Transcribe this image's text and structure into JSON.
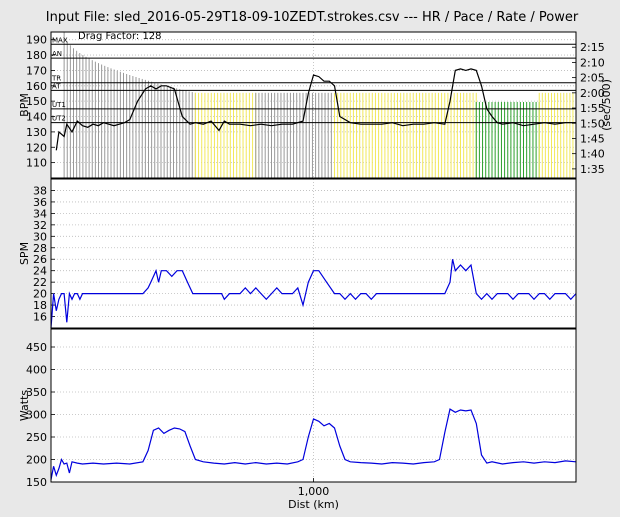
{
  "chart_data": [
    {
      "title": "Input File:  sled_2016-05-29T18-09-10ZEDT.strokes.csv --- HR / Pace / Rate / Power",
      "type": "line",
      "annotation": "Drag Factor: 128",
      "ylabel": "BPM",
      "ylabel_right": "(sec/500)",
      "ylim": [
        100,
        195
      ],
      "yticks": [
        "110",
        "120",
        "130",
        "140",
        "150",
        "160",
        "170",
        "180",
        "190"
      ],
      "ytick_values": [
        110,
        120,
        130,
        140,
        150,
        160,
        170,
        180,
        190
      ],
      "right_ticks": [
        "1:35",
        "1:40",
        "1:45",
        "1:50",
        "1:55",
        "2:00",
        "2:05",
        "2:10",
        "2:15"
      ],
      "right_tick_values": [
        95,
        100,
        105,
        110,
        115,
        120,
        125,
        130,
        135
      ],
      "right_lim": [
        140,
        92
      ],
      "hr_zones": [
        {
          "label": "MAX",
          "value": 187
        },
        {
          "label": "AN",
          "value": 178
        },
        {
          "label": "TR",
          "value": 162
        },
        {
          "label": "AT",
          "value": 157
        },
        {
          "label": "UT1",
          "value": 145
        },
        {
          "label": "UT2",
          "value": 136
        }
      ],
      "series": [
        {
          "color": "#000000",
          "x": [
            0.02,
            0.03,
            0.05,
            0.06,
            0.08,
            0.1,
            0.12,
            0.14,
            0.16,
            0.18,
            0.2,
            0.22,
            0.24,
            0.26,
            0.28,
            0.3,
            0.33,
            0.36,
            0.38,
            0.4,
            0.42,
            0.44,
            0.47,
            0.5,
            0.53,
            0.55,
            0.58,
            0.61,
            0.64,
            0.66,
            0.68,
            0.72,
            0.76,
            0.8,
            0.84,
            0.88,
            0.92,
            0.96,
            0.98,
            1.0,
            1.02,
            1.04,
            1.06,
            1.08,
            1.1,
            1.14,
            1.18,
            1.22,
            1.26,
            1.3,
            1.34,
            1.38,
            1.42,
            1.46,
            1.5,
            1.52,
            1.54,
            1.56,
            1.58,
            1.6,
            1.62,
            1.64,
            1.66,
            1.68,
            1.7,
            1.72,
            1.76,
            1.8,
            1.84,
            1.88,
            1.92,
            1.96,
            2.0
          ],
          "y": [
            118,
            130,
            127,
            135,
            130,
            137,
            134,
            133,
            135,
            134,
            136,
            135,
            134,
            135,
            136,
            138,
            150,
            158,
            160,
            158,
            160,
            160,
            158,
            140,
            135,
            136,
            135,
            137,
            131,
            137,
            135,
            135,
            134,
            135,
            134,
            135,
            135,
            137,
            155,
            167,
            166,
            163,
            163,
            160,
            140,
            136,
            135,
            135,
            135,
            136,
            134,
            135,
            135,
            136,
            135,
            150,
            170,
            171,
            170,
            171,
            170,
            160,
            145,
            140,
            136,
            135,
            136,
            134,
            135,
            136,
            135,
            136,
            136
          ]
        }
      ],
      "pace_bars": [
        {
          "color": "#999999",
          "x_range": [
            0.05,
            0.55
          ],
          "pace_range": [
            140,
            120
          ]
        },
        {
          "color": "#f2e85a",
          "x_range": [
            0.55,
            0.78
          ],
          "pace_value": 120
        },
        {
          "color": "#999999",
          "x_range": [
            0.78,
            1.08
          ],
          "pace_value": 120
        },
        {
          "color": "#f2e85a",
          "x_range": [
            1.08,
            1.62
          ],
          "pace_value": 120
        },
        {
          "color": "#2ca02c",
          "x_range": [
            1.62,
            1.86
          ],
          "pace_value": 117
        },
        {
          "color": "#f2e85a",
          "x_range": [
            1.86,
            2.0
          ],
          "pace_value": 120
        }
      ]
    },
    {
      "type": "line",
      "ylabel": "SPM",
      "ylim": [
        14,
        40
      ],
      "yticks": [
        "16",
        "18",
        "20",
        "22",
        "24",
        "26",
        "28",
        "30",
        "32",
        "34",
        "36",
        "38"
      ],
      "ytick_values": [
        16,
        18,
        20,
        22,
        24,
        26,
        28,
        30,
        32,
        34,
        36,
        38
      ],
      "series": [
        {
          "color": "#0000dd",
          "x": [
            0.0,
            0.01,
            0.02,
            0.03,
            0.04,
            0.05,
            0.06,
            0.07,
            0.08,
            0.09,
            0.1,
            0.11,
            0.12,
            0.16,
            0.2,
            0.25,
            0.3,
            0.35,
            0.37,
            0.38,
            0.4,
            0.41,
            0.42,
            0.44,
            0.46,
            0.48,
            0.5,
            0.52,
            0.54,
            0.58,
            0.62,
            0.65,
            0.66,
            0.68,
            0.7,
            0.72,
            0.74,
            0.76,
            0.78,
            0.8,
            0.82,
            0.84,
            0.86,
            0.88,
            0.9,
            0.92,
            0.94,
            0.96,
            0.98,
            1.0,
            1.02,
            1.05,
            1.08,
            1.1,
            1.12,
            1.14,
            1.16,
            1.18,
            1.2,
            1.22,
            1.24,
            1.26,
            1.28,
            1.3,
            1.34,
            1.38,
            1.42,
            1.46,
            1.5,
            1.52,
            1.53,
            1.54,
            1.56,
            1.58,
            1.6,
            1.62,
            1.64,
            1.66,
            1.68,
            1.7,
            1.72,
            1.74,
            1.76,
            1.78,
            1.8,
            1.82,
            1.84,
            1.86,
            1.88,
            1.9,
            1.92,
            1.94,
            1.96,
            1.98,
            2.0
          ],
          "y": [
            14,
            20,
            17,
            19,
            20,
            20,
            15,
            20,
            19,
            20,
            20,
            19,
            20,
            20,
            20,
            20,
            20,
            20,
            21,
            22,
            24,
            22,
            24,
            24,
            23,
            24,
            24,
            22,
            20,
            20,
            20,
            20,
            19,
            20,
            20,
            20,
            21,
            20,
            21,
            20,
            19,
            20,
            21,
            20,
            20,
            20,
            21,
            18,
            22,
            24,
            24,
            22,
            20,
            20,
            19,
            20,
            19,
            20,
            20,
            19,
            20,
            20,
            20,
            20,
            20,
            20,
            20,
            20,
            20,
            22,
            26,
            24,
            25,
            24,
            25,
            20,
            19,
            20,
            19,
            20,
            20,
            20,
            19,
            20,
            20,
            20,
            19,
            20,
            20,
            19,
            20,
            20,
            20,
            19,
            20
          ]
        }
      ]
    },
    {
      "type": "line",
      "ylabel": "Watts",
      "xlabel": "Dist (km)",
      "xticks": [
        "1,000"
      ],
      "xtick_values": [
        1.0
      ],
      "ylim": [
        150,
        490
      ],
      "yticks": [
        "150",
        "200",
        "250",
        "300",
        "350",
        "400",
        "450"
      ],
      "ytick_values": [
        150,
        200,
        250,
        300,
        350,
        400,
        450
      ],
      "series": [
        {
          "color": "#0000dd",
          "x": [
            0.0,
            0.01,
            0.02,
            0.03,
            0.04,
            0.05,
            0.06,
            0.07,
            0.08,
            0.1,
            0.12,
            0.16,
            0.2,
            0.25,
            0.3,
            0.35,
            0.37,
            0.39,
            0.41,
            0.43,
            0.45,
            0.47,
            0.49,
            0.51,
            0.53,
            0.55,
            0.58,
            0.62,
            0.66,
            0.7,
            0.74,
            0.78,
            0.82,
            0.86,
            0.9,
            0.94,
            0.96,
            0.98,
            1.0,
            1.02,
            1.04,
            1.06,
            1.08,
            1.1,
            1.12,
            1.14,
            1.18,
            1.22,
            1.26,
            1.3,
            1.34,
            1.38,
            1.42,
            1.46,
            1.48,
            1.5,
            1.52,
            1.54,
            1.56,
            1.58,
            1.6,
            1.62,
            1.64,
            1.66,
            1.68,
            1.72,
            1.76,
            1.8,
            1.84,
            1.88,
            1.92,
            1.96,
            2.0
          ],
          "y": [
            155,
            185,
            165,
            180,
            200,
            190,
            192,
            170,
            195,
            192,
            190,
            192,
            190,
            192,
            190,
            195,
            220,
            265,
            270,
            258,
            265,
            270,
            268,
            262,
            230,
            200,
            195,
            192,
            190,
            193,
            190,
            193,
            190,
            192,
            190,
            195,
            200,
            250,
            290,
            285,
            275,
            280,
            270,
            230,
            200,
            195,
            193,
            192,
            190,
            193,
            192,
            190,
            193,
            195,
            200,
            260,
            312,
            305,
            310,
            308,
            310,
            280,
            210,
            192,
            195,
            190,
            193,
            195,
            192,
            195,
            193,
            197,
            195
          ]
        }
      ]
    }
  ]
}
